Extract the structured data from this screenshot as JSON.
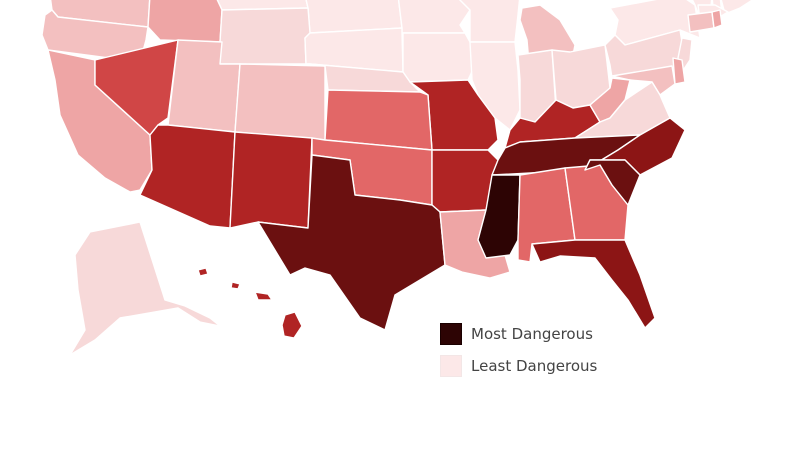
{
  "colors": {
    "c1": "#fce8e8",
    "c2": "#f7d9d9",
    "c3": "#f3c0c0",
    "c4": "#eea5a5",
    "c5": "#e26767",
    "c6": "#d04646",
    "c7": "#b02424",
    "c8": "#8c1515",
    "c9": "#6b1010",
    "c10": "#2d0404"
  },
  "states": {
    "WA": "c3",
    "MT": "c1",
    "ND": "c1",
    "MN": "c1",
    "WI": "c1",
    "MI": "c3",
    "NY": "c1",
    "VT": "c1",
    "NH": "c1",
    "ME": "c1",
    "OR": "c3",
    "ID": "c4",
    "WY": "c2",
    "SD": "c1",
    "IA": "c1",
    "IL": "c1",
    "IN": "c2",
    "OH": "c2",
    "PA": "c2",
    "MA": "c1",
    "CT": "c3",
    "RI": "c4",
    "NJ": "c2",
    "DE": "c4",
    "MD": "c3",
    "CA": "c4",
    "NV": "c6",
    "UT": "c3",
    "CO": "c3",
    "NE": "c2",
    "MO": "c7",
    "KY": "c7",
    "WV": "c4",
    "VA": "c2",
    "AZ": "c7",
    "NM": "c7",
    "KS": "c5",
    "OK": "c5",
    "AR": "c7",
    "TN": "c9",
    "NC": "c8",
    "TX": "c9",
    "LA": "c4",
    "MS": "c10",
    "AL": "c5",
    "GA": "c5",
    "SC": "c9",
    "FL": "c8",
    "AK": "c2",
    "HI": "c7"
  },
  "legend": {
    "most": {
      "label": "Most Dangerous",
      "color": "#2d0404"
    },
    "least": {
      "label": "Least Dangerous",
      "color": "#fce8e8"
    }
  }
}
